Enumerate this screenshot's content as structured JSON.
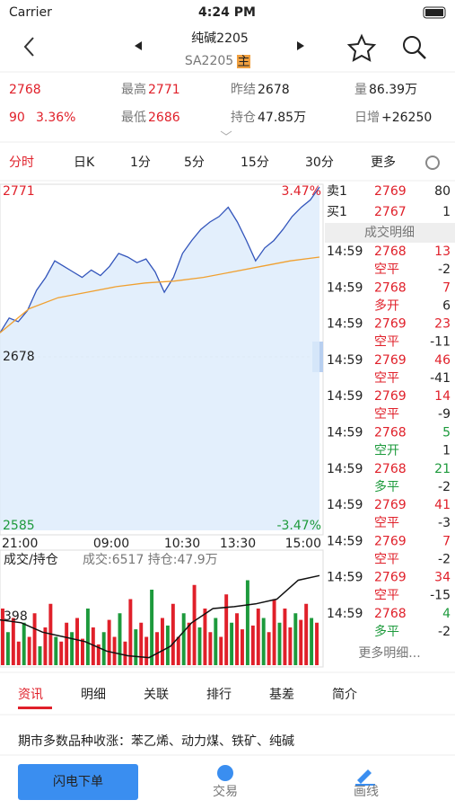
{
  "status": {
    "carrier": "Carrier",
    "time": "4:24 PM"
  },
  "header": {
    "title": "纯碱2205",
    "code": "SA2205",
    "badge": "主"
  },
  "quote": {
    "price": "2768",
    "change": "90",
    "pct": "3.36%",
    "stats": [
      {
        "label": "最高",
        "value": "2771"
      },
      {
        "label": "昨结",
        "value": "2678"
      },
      {
        "label": "量",
        "value": "86.39万"
      },
      {
        "label": "最低",
        "value": "2686"
      },
      {
        "label": "持仓",
        "value": "47.85万"
      },
      {
        "label": "日增",
        "value": "+26250"
      }
    ]
  },
  "tabs": [
    "分时",
    "日K",
    "1分",
    "5分",
    "15分",
    "30分",
    "更多"
  ],
  "intraday": {
    "top": "2771",
    "top_pct": "3.47%",
    "mid": "2678",
    "bottom": "2585",
    "bottom_pct": "-3.47%",
    "times": [
      "21:00",
      "09:00",
      "10:30",
      "13:30",
      "15:00"
    ],
    "ylim": [
      2585,
      2771
    ],
    "price": [
      2692,
      2700,
      2698,
      2704,
      2715,
      2722,
      2731,
      2728,
      2725,
      2722,
      2726,
      2723,
      2728,
      2735,
      2733,
      2730,
      2732,
      2725,
      2714,
      2722,
      2735,
      2742,
      2748,
      2752,
      2755,
      2760,
      2752,
      2742,
      2731,
      2738,
      2742,
      2748,
      2755,
      2760,
      2764,
      2771
    ],
    "average": [
      2692,
      2705,
      2711,
      2714,
      2717,
      2719,
      2720,
      2722,
      2725,
      2728,
      2731,
      2733
    ],
    "volume_title": "成交/持仓",
    "volume_info": "成交:6517 持仓:47.9万",
    "volume_axis": "398",
    "vlim": [
      0,
      100
    ],
    "volume": [
      60,
      35,
      50,
      25,
      45,
      30,
      55,
      20,
      40,
      65,
      30,
      25,
      45,
      35,
      50,
      28,
      60,
      40,
      22,
      35,
      48,
      30,
      55,
      25,
      70,
      38,
      45,
      30,
      80,
      35,
      50,
      42,
      65,
      30,
      55,
      45,
      85,
      40,
      60,
      35,
      50,
      30,
      75,
      45,
      55,
      38,
      90,
      42,
      60,
      50,
      35,
      70,
      45,
      60,
      40,
      55,
      48,
      65,
      50,
      45
    ],
    "oi": [
      48,
      45,
      35,
      30,
      25,
      15,
      10,
      8,
      20,
      45,
      60,
      62,
      65,
      70,
      90,
      95
    ]
  },
  "book": {
    "ask": {
      "label": "卖1",
      "price": "2769",
      "volume": "80"
    },
    "bid": {
      "label": "买1",
      "price": "2767",
      "volume": "1"
    },
    "detail_title": "成交明细",
    "trades": [
      {
        "time": "14:59",
        "price": "2768",
        "volume": "13",
        "type": "空平",
        "oi": "-2"
      },
      {
        "time": "14:59",
        "price": "2768",
        "volume": "7",
        "type": "多开",
        "oi": "6"
      },
      {
        "time": "14:59",
        "price": "2769",
        "volume": "23",
        "type": "空平",
        "oi": "-11"
      },
      {
        "time": "14:59",
        "price": "2769",
        "volume": "46",
        "type": "空平",
        "oi": "-41"
      },
      {
        "time": "14:59",
        "price": "2769",
        "volume": "14",
        "type": "空平",
        "oi": "-9"
      },
      {
        "time": "14:59",
        "price": "2768",
        "volume": "5",
        "type": "空开",
        "oi": "1"
      },
      {
        "time": "14:59",
        "price": "2768",
        "volume": "21",
        "type": "多平",
        "oi": "-2"
      },
      {
        "time": "14:59",
        "price": "2769",
        "volume": "41",
        "type": "空平",
        "oi": "-3"
      },
      {
        "time": "14:59",
        "price": "2769",
        "volume": "7",
        "type": "空平",
        "oi": "-2"
      },
      {
        "time": "14:59",
        "price": "2769",
        "volume": "34",
        "type": "空平",
        "oi": "-15"
      },
      {
        "time": "14:59",
        "price": "2768",
        "volume": "4",
        "type": "多平",
        "oi": "-2"
      }
    ],
    "more": "更多明细..."
  },
  "bottom_tabs": [
    "资讯",
    "明细",
    "关联",
    "排行",
    "基差",
    "简介"
  ],
  "news": "期市多数品种收涨：苯乙烯、动力煤、铁矿、纯碱",
  "toolbar": {
    "order": "闪电下单",
    "trade": "交易",
    "draw": "画线"
  }
}
